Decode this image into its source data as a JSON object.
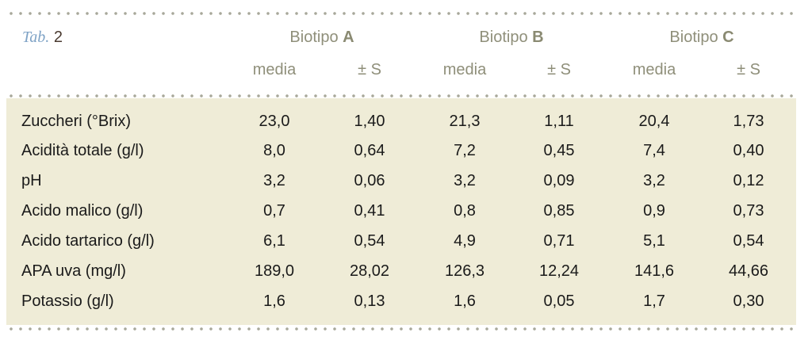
{
  "table": {
    "caption_label": "Tab.",
    "caption_number": "2",
    "groups": [
      {
        "prefix": "Biotipo",
        "letter": "A"
      },
      {
        "prefix": "Biotipo",
        "letter": "B"
      },
      {
        "prefix": "Biotipo",
        "letter": "C"
      }
    ],
    "subheaders": [
      "media",
      "± S",
      "media",
      "± S",
      "media",
      "± S"
    ],
    "rows": [
      {
        "label": "Zuccheri (°Brix)",
        "values": [
          "23,0",
          "1,40",
          "21,3",
          "1,11",
          "20,4",
          "1,73"
        ]
      },
      {
        "label": "Acidità totale (g/l)",
        "values": [
          "8,0",
          "0,64",
          "7,2",
          "0,45",
          "7,4",
          "0,40"
        ]
      },
      {
        "label": "pH",
        "values": [
          "3,2",
          "0,06",
          "3,2",
          "0,09",
          "3,2",
          "0,12"
        ]
      },
      {
        "label": "Acido malico (g/l)",
        "values": [
          "0,7",
          "0,41",
          "0,8",
          "0,85",
          "0,9",
          "0,73"
        ]
      },
      {
        "label": "Acido tartarico (g/l)",
        "values": [
          "6,1",
          "0,54",
          "4,9",
          "0,71",
          "5,1",
          "0,54"
        ]
      },
      {
        "label": "APA uva (mg/l)",
        "values": [
          "189,0",
          "28,02",
          "126,3",
          "12,24",
          "141,6",
          "44,66"
        ]
      },
      {
        "label": "Potassio (g/l)",
        "values": [
          "1,6",
          "0,13",
          "1,6",
          "0,05",
          "1,7",
          "0,30"
        ]
      }
    ]
  },
  "colors": {
    "caption_label": "#7fa3c6",
    "header_text": "#8f8f7a",
    "body_background": "#efecd7",
    "dotted_rule": "#a8a89a"
  }
}
